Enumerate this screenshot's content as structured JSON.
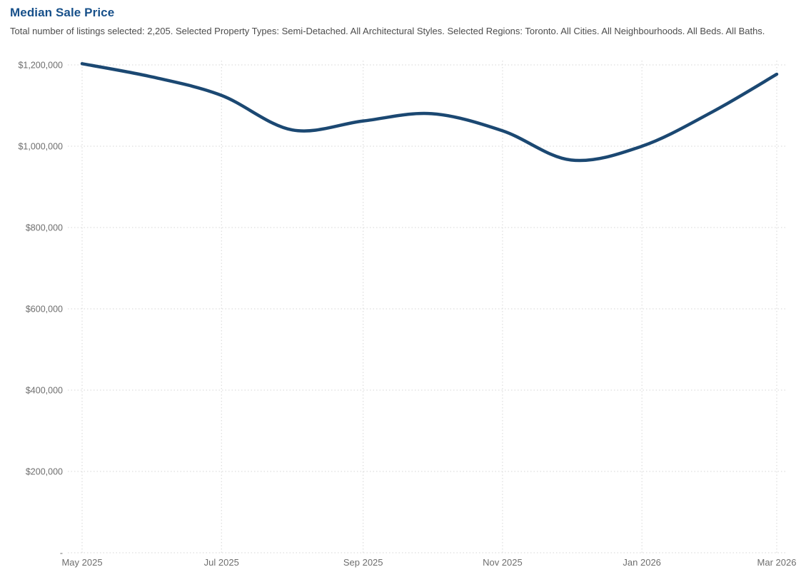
{
  "chart_data": {
    "type": "line",
    "title": "Median Sale Price",
    "subtitle": "Total number of listings selected: 2,205. Selected Property Types: Semi-Detached. All Architectural Styles. Selected Regions: Toronto. All Cities. All Neighbourhoods. All Beds. All Baths.",
    "series_name": "Median Sale Price",
    "x": [
      "May 2025",
      "Jun 2025",
      "Jul 2025",
      "Aug 2025",
      "Sep 2025",
      "Oct 2025",
      "Nov 2025",
      "Dec 2025",
      "Jan 2026",
      "Feb 2026",
      "Mar 2026"
    ],
    "day_offsets": [
      0,
      31,
      61,
      92,
      123,
      153,
      184,
      214,
      245,
      276,
      304
    ],
    "values": [
      1203000,
      1170000,
      1125000,
      1040000,
      1062000,
      1080000,
      1038000,
      966000,
      1000000,
      1085000,
      1177000
    ],
    "x_axis": {
      "ticks": [
        {
          "label": "May 2025",
          "day": 0
        },
        {
          "label": "Jul 2025",
          "day": 61
        },
        {
          "label": "Sep 2025",
          "day": 123
        },
        {
          "label": "Nov 2025",
          "day": 184
        },
        {
          "label": "Jan 2026",
          "day": 245
        },
        {
          "label": "Mar 2026",
          "day": 304
        }
      ]
    },
    "y_axis": {
      "ticks": [
        {
          "label": "$1,200,000",
          "value": 1200000
        },
        {
          "label": "$1,000,000",
          "value": 1000000
        },
        {
          "label": "$800,000",
          "value": 800000
        },
        {
          "label": "$600,000",
          "value": 600000
        },
        {
          "label": "$400,000",
          "value": 400000
        },
        {
          "label": "$200,000",
          "value": 200000
        },
        {
          "label": "-",
          "value": 0
        }
      ]
    },
    "xlabel": "",
    "ylabel": "",
    "ylim": [
      0,
      1210000
    ],
    "grid": "dotted",
    "legend": "none",
    "colors": {
      "line": "#1b4872",
      "title": "#17508a",
      "subtitle": "#4c4c4c",
      "tick_label": "#6e6e6e",
      "gridline": "#d6d6d6",
      "background": "#ffffff"
    }
  }
}
